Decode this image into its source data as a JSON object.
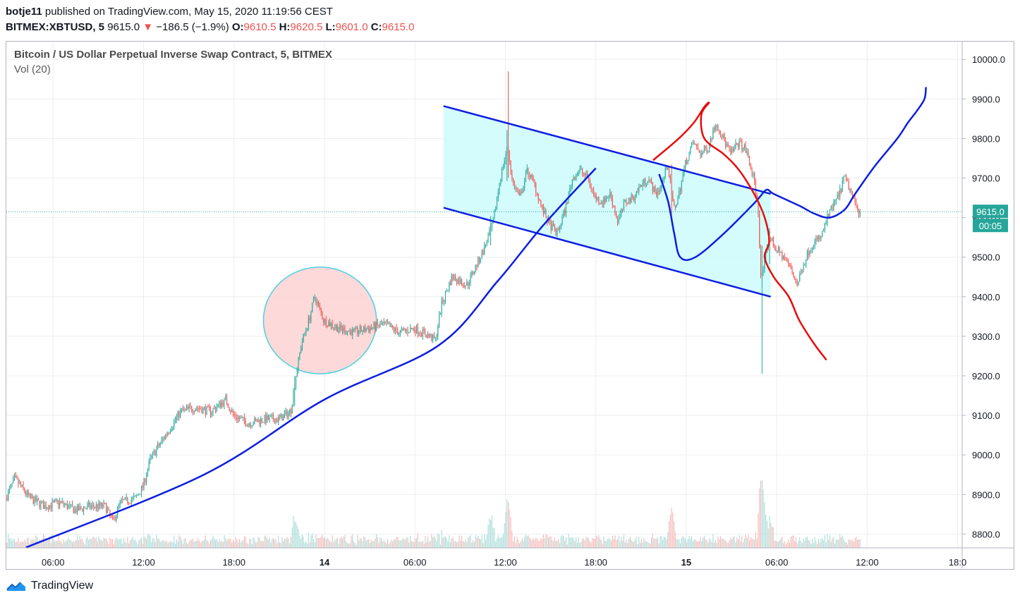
{
  "header": {
    "user": "botje11",
    "published_text": "published on TradingView.com, May 15, 2020 11:19:56 CEST",
    "symbol": "BITMEX:XBTUSD, 5",
    "last": "9615.0",
    "change_arrow": "▼",
    "change": "−186.5 (−1.9%)",
    "o_label": "O:",
    "o": "9610.5",
    "h_label": "H:",
    "h": "9620.5",
    "l_label": "L:",
    "l": "9601.0",
    "c_label": "C:",
    "c": "9615.0"
  },
  "chart_title": "Bitcoin / US Dollar Perpetual Inverse Swap Contract, 5, BITMEX",
  "volume_label": "Vol (20)",
  "footer": {
    "brand": "TradingView",
    "logo_icon": "tradingview-logo-icon"
  },
  "colors": {
    "up": "#26a69a",
    "down": "#ef5350",
    "trendline": "#0d1ee0",
    "projection_red": "#e80c0c",
    "channel_fill": "#ccfbfb",
    "circle_fill": "#fdd5d5",
    "circle_stroke": "#4dd0e1",
    "price_label_bg": "#26a69a"
  },
  "chart_data": {
    "type": "candlestick",
    "title": "Bitcoin / US Dollar Perpetual Inverse Swap Contract, 5, BITMEX",
    "interval": "5",
    "y_ticks": [
      8800,
      8900,
      9000,
      9100,
      9200,
      9300,
      9400,
      9500,
      9600,
      9700,
      9800,
      9900,
      10000
    ],
    "y_tick_labels": [
      "8800.0",
      "8900.0",
      "9000.0",
      "9100.0",
      "9200.0",
      "9300.0",
      "9400.0",
      "9500.0",
      "9600.0",
      "9700.0",
      "9800.0",
      "9900.0",
      "10000.0"
    ],
    "ylim": [
      8765,
      10045
    ],
    "x_ticks": [
      {
        "t": 6,
        "label": "06:00"
      },
      {
        "t": 12,
        "label": "12:00"
      },
      {
        "t": 18,
        "label": "18:00"
      },
      {
        "t": 24,
        "label": "14"
      },
      {
        "t": 30,
        "label": "06:00"
      },
      {
        "t": 36,
        "label": "12:00"
      },
      {
        "t": 42,
        "label": "18:00"
      },
      {
        "t": 48,
        "label": "15"
      },
      {
        "t": 54,
        "label": "06:00"
      },
      {
        "t": 60,
        "label": "12:00"
      },
      {
        "t": 66,
        "label": "18:0"
      }
    ],
    "xlim": [
      2.9,
      66.3
    ],
    "current_price": 9615.0,
    "current_price_label": "9615.0",
    "countdown": "00:05",
    "price_path": [
      [
        2.9,
        8890
      ],
      [
        3.5,
        8940
      ],
      [
        4.5,
        8890
      ],
      [
        5.5,
        8870
      ],
      [
        6.5,
        8880
      ],
      [
        7.5,
        8860
      ],
      [
        8.5,
        8870
      ],
      [
        9.5,
        8870
      ],
      [
        10.0,
        8830
      ],
      [
        10.5,
        8880
      ],
      [
        11.5,
        8890
      ],
      [
        12.0,
        8920
      ],
      [
        12.5,
        8990
      ],
      [
        13.5,
        9050
      ],
      [
        14.5,
        9110
      ],
      [
        15.5,
        9120
      ],
      [
        16.5,
        9110
      ],
      [
        17.5,
        9140
      ],
      [
        18.0,
        9100
      ],
      [
        19.0,
        9080
      ],
      [
        20.0,
        9090
      ],
      [
        21.0,
        9090
      ],
      [
        21.8,
        9110
      ],
      [
        22.1,
        9190
      ],
      [
        22.5,
        9280
      ],
      [
        23.0,
        9340
      ],
      [
        23.4,
        9400
      ],
      [
        24.0,
        9340
      ],
      [
        25.0,
        9320
      ],
      [
        26.0,
        9310
      ],
      [
        27.0,
        9320
      ],
      [
        28.0,
        9330
      ],
      [
        29.0,
        9310
      ],
      [
        30.0,
        9320
      ],
      [
        31.0,
        9300
      ],
      [
        31.4,
        9290
      ],
      [
        31.8,
        9380
      ],
      [
        32.5,
        9450
      ],
      [
        33.5,
        9430
      ],
      [
        34.5,
        9510
      ],
      [
        35.2,
        9580
      ],
      [
        35.7,
        9700
      ],
      [
        36.2,
        9780
      ],
      [
        36.5,
        9690
      ],
      [
        37.0,
        9650
      ],
      [
        37.5,
        9720
      ],
      [
        38.0,
        9680
      ],
      [
        38.5,
        9620
      ],
      [
        39.0,
        9580
      ],
      [
        39.5,
        9560
      ],
      [
        40.0,
        9620
      ],
      [
        40.5,
        9700
      ],
      [
        41.0,
        9720
      ],
      [
        41.5,
        9700
      ],
      [
        42.0,
        9650
      ],
      [
        42.5,
        9640
      ],
      [
        43.0,
        9660
      ],
      [
        43.5,
        9590
      ],
      [
        44.0,
        9640
      ],
      [
        44.5,
        9650
      ],
      [
        45.0,
        9680
      ],
      [
        45.5,
        9700
      ],
      [
        46.0,
        9660
      ],
      [
        46.4,
        9680
      ],
      [
        46.8,
        9740
      ],
      [
        47.2,
        9620
      ],
      [
        47.5,
        9650
      ],
      [
        48.0,
        9740
      ],
      [
        48.5,
        9790
      ],
      [
        49.0,
        9760
      ],
      [
        49.5,
        9780
      ],
      [
        50.0,
        9840
      ],
      [
        50.5,
        9800
      ],
      [
        51.0,
        9760
      ],
      [
        51.5,
        9790
      ],
      [
        52.0,
        9770
      ],
      [
        52.5,
        9700
      ],
      [
        52.8,
        9630
      ],
      [
        53.0,
        9440
      ],
      [
        53.3,
        9500
      ],
      [
        53.6,
        9550
      ],
      [
        54.0,
        9520
      ],
      [
        54.5,
        9500
      ],
      [
        55.0,
        9470
      ],
      [
        55.4,
        9430
      ],
      [
        55.8,
        9480
      ],
      [
        56.2,
        9520
      ],
      [
        56.6,
        9540
      ],
      [
        57.0,
        9550
      ],
      [
        57.4,
        9600
      ],
      [
        57.8,
        9630
      ],
      [
        58.2,
        9660
      ],
      [
        58.5,
        9700
      ],
      [
        58.8,
        9680
      ],
      [
        59.2,
        9640
      ],
      [
        59.5,
        9615
      ]
    ],
    "volume_spikes": [
      {
        "t": 36.1,
        "rel": 1.0
      },
      {
        "t": 47.0,
        "rel": 0.75
      },
      {
        "t": 53.0,
        "rel": 1.6
      },
      {
        "t": 22.0,
        "rel": 0.5
      },
      {
        "t": 35.0,
        "rel": 0.6
      },
      {
        "t": 53.5,
        "rel": 0.55
      }
    ],
    "drawings": {
      "channel_upper": [
        [
          31.9,
          9882
        ],
        [
          53.6,
          9660
        ]
      ],
      "channel_lower": [
        [
          31.9,
          9625
        ],
        [
          53.6,
          9400
        ]
      ],
      "channel_right_t": 53.6,
      "parabola": [
        [
          4.2,
          8766
        ],
        [
          16.0,
          8950
        ],
        [
          24.0,
          9140
        ],
        [
          31.5,
          9275
        ],
        [
          35.5,
          9440
        ],
        [
          38.5,
          9580
        ],
        [
          42.0,
          9725
        ]
      ],
      "circle": {
        "t": 23.7,
        "price": 9340,
        "rx_t": 3.75,
        "ry_price": 135
      },
      "blue_projection": [
        [
          46.2,
          9710
        ],
        [
          46.8,
          9640
        ],
        [
          47.2,
          9560
        ],
        [
          47.6,
          9500
        ],
        [
          48.6,
          9500
        ],
        [
          50.5,
          9560
        ],
        [
          52.6,
          9640
        ],
        [
          53.3,
          9670
        ],
        [
          53.8,
          9660
        ],
        [
          55.5,
          9630
        ],
        [
          56.5,
          9610
        ],
        [
          57.5,
          9600
        ],
        [
          58.5,
          9620
        ],
        [
          59.2,
          9660
        ],
        [
          60.5,
          9730
        ],
        [
          62.0,
          9800
        ],
        [
          62.7,
          9840
        ],
        [
          63.3,
          9870
        ],
        [
          63.8,
          9900
        ],
        [
          63.9,
          9930
        ]
      ],
      "red_projection": [
        [
          45.8,
          9745
        ],
        [
          47.5,
          9800
        ],
        [
          48.5,
          9840
        ],
        [
          49.2,
          9880
        ],
        [
          49.5,
          9890
        ],
        [
          49.0,
          9860
        ],
        [
          49.2,
          9800
        ],
        [
          50.5,
          9760
        ],
        [
          51.5,
          9720
        ],
        [
          52.5,
          9660
        ],
        [
          53.2,
          9600
        ],
        [
          53.5,
          9540
        ],
        [
          53.2,
          9500
        ],
        [
          53.8,
          9450
        ],
        [
          54.8,
          9400
        ],
        [
          55.5,
          9340
        ],
        [
          56.5,
          9280
        ],
        [
          57.3,
          9240
        ]
      ]
    }
  }
}
